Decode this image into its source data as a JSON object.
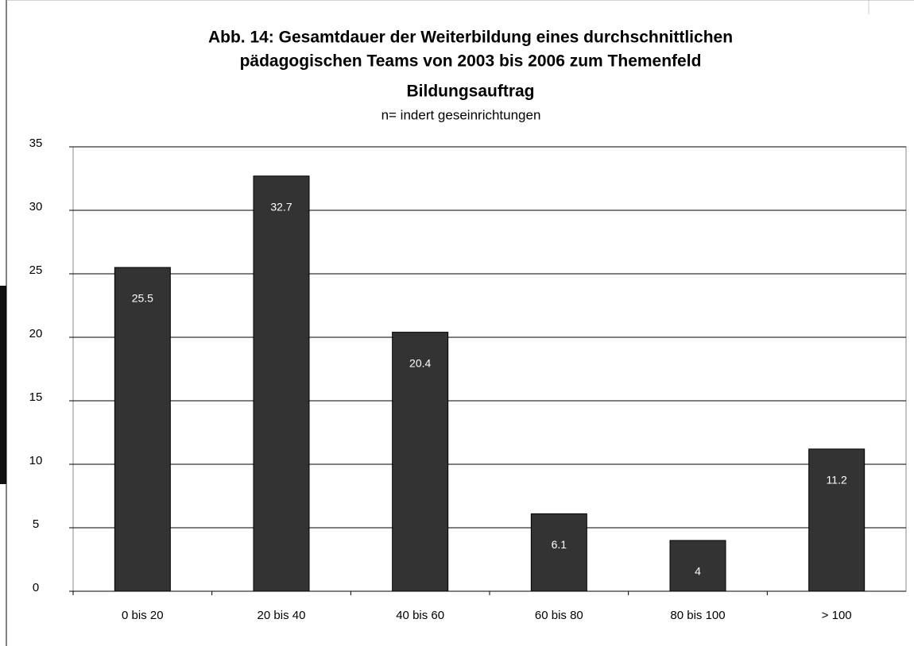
{
  "chart_data": {
    "type": "bar",
    "title": [
      "Abb. 14: Gesamtdauer der Weiterbildung eines durchschnittlichen",
      "pädagogischen Teams von 2003 bis 2006 zum Themenfeld",
      "Bildungsauftrag"
    ],
    "subtitle": "n= indert geseinrichtungen",
    "categories": [
      "0 bis 20",
      "20 bis 40",
      "40 bis 60",
      "60 bis 80",
      "80 bis 100",
      "> 100"
    ],
    "values": [
      25.5,
      32.7,
      20.4,
      6.1,
      4.0,
      11.2
    ],
    "color": "#333333",
    "ylim": [
      0,
      35
    ],
    "yticks": [
      0,
      5,
      10,
      15,
      20,
      25,
      30,
      35
    ],
    "grid": true
  }
}
